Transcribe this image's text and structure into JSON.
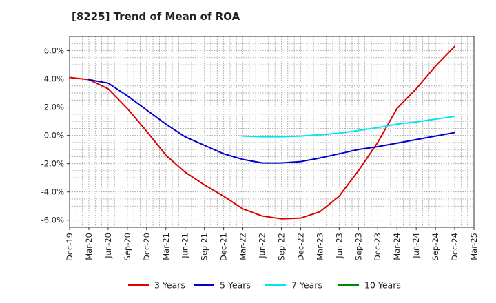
{
  "chart_data": {
    "type": "line",
    "title": "[8225]  Trend of Mean of ROA",
    "xlabel": "",
    "ylabel": "",
    "ylim": [
      -6.5,
      7.0
    ],
    "yticks": [
      -6.0,
      -4.0,
      -2.0,
      0.0,
      2.0,
      4.0,
      6.0
    ],
    "ytick_labels": [
      "-6.0%",
      "-4.0%",
      "-2.0%",
      "0.0%",
      "2.0%",
      "4.0%",
      "6.0%"
    ],
    "x_tick_labels": [
      "Dec-19",
      "Mar-20",
      "Jun-20",
      "Sep-20",
      "Dec-20",
      "Mar-21",
      "Jun-21",
      "Sep-21",
      "Dec-21",
      "Mar-22",
      "Jun-22",
      "Sep-22",
      "Dec-22",
      "Mar-23",
      "Jun-23",
      "Sep-23",
      "Dec-23",
      "Mar-24",
      "Jun-24",
      "Sep-24",
      "Dec-24",
      "Mar-25"
    ],
    "grid": true,
    "legend_position": "bottom",
    "series": [
      {
        "name": "3 Years",
        "color": "#dd0000",
        "points": [
          [
            0,
            4.1
          ],
          [
            1,
            3.95
          ],
          [
            2,
            3.3
          ],
          [
            3,
            1.9
          ],
          [
            4,
            0.3
          ],
          [
            5,
            -1.4
          ],
          [
            6,
            -2.6
          ],
          [
            7,
            -3.5
          ],
          [
            8,
            -4.3
          ],
          [
            9,
            -5.2
          ],
          [
            10,
            -5.7
          ],
          [
            11,
            -5.9
          ],
          [
            12,
            -5.85
          ],
          [
            13,
            -5.4
          ],
          [
            14,
            -4.3
          ],
          [
            15,
            -2.5
          ],
          [
            16,
            -0.5
          ],
          [
            17,
            1.9
          ],
          [
            18,
            3.3
          ],
          [
            19,
            4.9
          ],
          [
            20,
            6.3
          ]
        ]
      },
      {
        "name": "5 Years",
        "color": "#0000cc",
        "points": [
          [
            1,
            3.95
          ],
          [
            2,
            3.7
          ],
          [
            3,
            2.8
          ],
          [
            4,
            1.8
          ],
          [
            5,
            0.8
          ],
          [
            6,
            -0.1
          ],
          [
            7,
            -0.7
          ],
          [
            8,
            -1.3
          ],
          [
            9,
            -1.7
          ],
          [
            10,
            -1.95
          ],
          [
            11,
            -1.95
          ],
          [
            12,
            -1.85
          ],
          [
            13,
            -1.6
          ],
          [
            14,
            -1.3
          ],
          [
            15,
            -1.0
          ],
          [
            16,
            -0.8
          ],
          [
            17,
            -0.55
          ],
          [
            18,
            -0.3
          ],
          [
            19,
            -0.05
          ],
          [
            20,
            0.2
          ]
        ]
      },
      {
        "name": "7 Years",
        "color": "#00e5ee",
        "points": [
          [
            9,
            -0.05
          ],
          [
            10,
            -0.1
          ],
          [
            11,
            -0.1
          ],
          [
            12,
            -0.05
          ],
          [
            13,
            0.05
          ],
          [
            14,
            0.15
          ],
          [
            15,
            0.35
          ],
          [
            16,
            0.55
          ],
          [
            17,
            0.8
          ],
          [
            18,
            0.95
          ],
          [
            19,
            1.15
          ],
          [
            20,
            1.35
          ]
        ]
      },
      {
        "name": "10 Years",
        "color": "#008800",
        "points": []
      }
    ]
  }
}
